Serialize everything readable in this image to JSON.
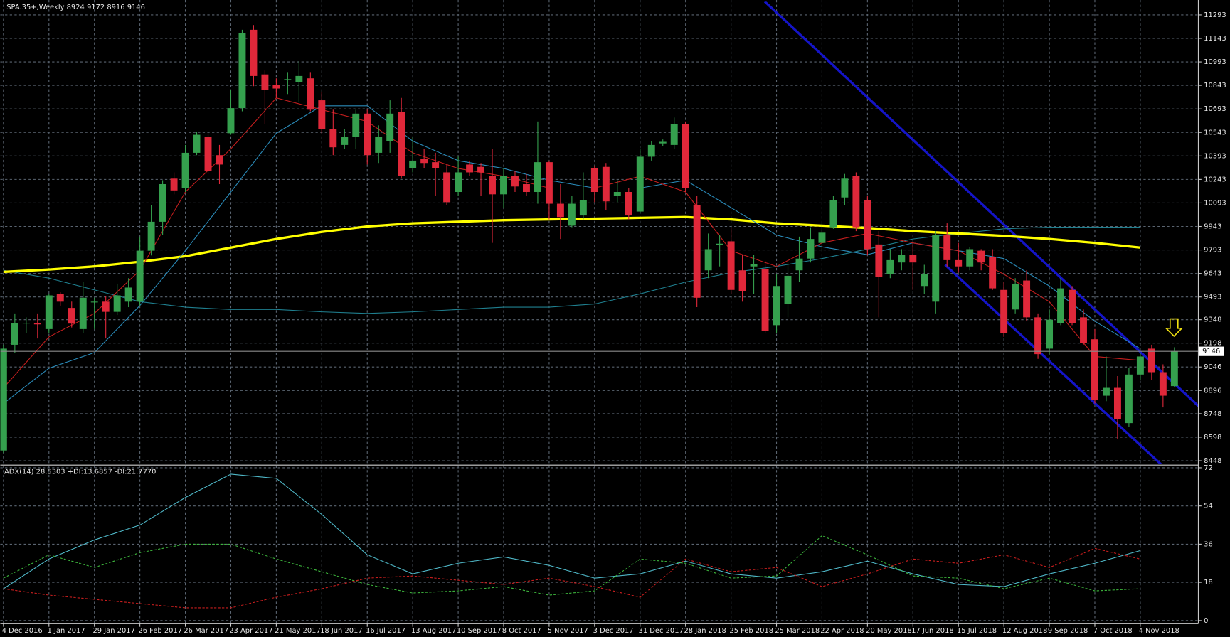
{
  "chart_data": [
    {
      "type": "candlestick",
      "title": "SPA.35+,Weekly  8924 9172 8916 9146",
      "categories": [
        "4 Dec 2016",
        null,
        null,
        null,
        "1 Jan 2017",
        null,
        null,
        null,
        "29 Jan 2017",
        null,
        null,
        null,
        "26 Feb 2017",
        null,
        null,
        null,
        "26 Mar 2017",
        null,
        null,
        null,
        "23 Apr 2017",
        null,
        null,
        null,
        "21 May 2017",
        null,
        null,
        null,
        "18 Jun 2017",
        null,
        null,
        null,
        "16 Jul 2017",
        null,
        null,
        null,
        "13 Aug 2017",
        null,
        null,
        null,
        "10 Sep 2017",
        null,
        null,
        null,
        "8 Oct 2017",
        null,
        null,
        null,
        "5 Nov 2017",
        null,
        null,
        null,
        "3 Dec 2017",
        null,
        null,
        null,
        "31 Dec 2017",
        null,
        null,
        null,
        "28 Jan 2018",
        null,
        null,
        null,
        "25 Feb 2018",
        null,
        null,
        null,
        "25 Mar 2018",
        null,
        null,
        null,
        "22 Apr 2018",
        null,
        null,
        null,
        "20 May 2018",
        null,
        null,
        null,
        "17 Jun 2018",
        null,
        null,
        null,
        "15 Jul 2018",
        null,
        null,
        null,
        "12 Aug 2018",
        null,
        null,
        null,
        "9 Sep 2018",
        null,
        null,
        null,
        "7 Oct 2018",
        null,
        null,
        null,
        "4 Nov 2018",
        null,
        null,
        null
      ],
      "open": [
        8513,
        9188,
        9323,
        9328,
        9288,
        9513,
        9423,
        9288,
        9458,
        9463,
        9398,
        9463,
        9463,
        9788,
        9973,
        10248,
        10188,
        10413,
        10513,
        10398,
        10538,
        10698,
        11198,
        10913,
        10848,
        10878,
        10863,
        10888,
        10748,
        10563,
        10463,
        10513,
        10663,
        10413,
        10488,
        10673,
        10313,
        10373,
        10353,
        10288,
        10163,
        10338,
        10323,
        10263,
        10148,
        10263,
        10213,
        10163,
        10353,
        10088,
        9948,
        10013,
        10313,
        10323,
        10138,
        10163,
        10038,
        10388,
        10473,
        10463,
        10598,
        10078,
        9663,
        9823,
        9848,
        9663,
        9688,
        9673,
        9313,
        9448,
        9663,
        9738,
        9838,
        9938,
        10128,
        10263,
        10113,
        9828,
        9638,
        9713,
        9763,
        9563,
        9463,
        9888,
        9728,
        9688,
        9788,
        9748,
        9538,
        9413,
        9598,
        9363,
        9163,
        9328,
        9538,
        9363,
        9223,
        8863,
        8913,
        8688,
        8998,
        9163,
        9013,
        8924
      ],
      "high": [
        9188,
        9388,
        9363,
        9388,
        9513,
        9523,
        9463,
        9588,
        9488,
        9498,
        9578,
        9613,
        9878,
        10078,
        10238,
        10288,
        10463,
        10548,
        10538,
        10463,
        10813,
        11198,
        11228,
        10938,
        10888,
        10928,
        10998,
        10928,
        10798,
        10688,
        10563,
        10688,
        10688,
        10588,
        10748,
        10763,
        10513,
        10438,
        10413,
        10338,
        10388,
        10363,
        10348,
        10438,
        10313,
        10298,
        10278,
        10613,
        10363,
        10213,
        10138,
        10288,
        10328,
        10348,
        10238,
        10188,
        10438,
        10488,
        10498,
        10638,
        10613,
        10138,
        9898,
        9888,
        9938,
        9763,
        9763,
        9723,
        9638,
        9713,
        9878,
        9938,
        9963,
        10138,
        10278,
        10288,
        10138,
        9913,
        9798,
        9798,
        9838,
        9698,
        9913,
        9963,
        9838,
        9813,
        9798,
        9798,
        9588,
        9613,
        9663,
        9388,
        9413,
        9613,
        9563,
        9413,
        9288,
        9113,
        8988,
        9038,
        9138,
        9188,
        9063,
        9172
      ],
      "low": [
        8498,
        9138,
        9263,
        9228,
        9263,
        9438,
        9298,
        9263,
        9288,
        9228,
        9378,
        9428,
        9438,
        9758,
        9888,
        10148,
        10163,
        10398,
        10278,
        10213,
        10528,
        10678,
        10838,
        10598,
        10763,
        10788,
        10738,
        10678,
        10538,
        10398,
        10438,
        10438,
        10338,
        10348,
        10413,
        10248,
        10288,
        10313,
        10138,
        10078,
        10138,
        10263,
        10138,
        9838,
        10063,
        10163,
        10138,
        10088,
        9988,
        9863,
        9938,
        9988,
        10098,
        10048,
        10098,
        9988,
        10028,
        10363,
        10458,
        10438,
        10163,
        9428,
        9613,
        9688,
        9513,
        9463,
        9513,
        9263,
        9263,
        9363,
        9588,
        9713,
        9788,
        9928,
        10078,
        9913,
        9763,
        9363,
        9613,
        9663,
        9538,
        9513,
        9388,
        9688,
        9648,
        9663,
        9663,
        9538,
        9238,
        9388,
        9338,
        9098,
        9128,
        9313,
        9313,
        9188,
        8813,
        8828,
        8588,
        8663,
        8963,
        8963,
        8788,
        8916
      ],
      "close": [
        9163,
        9328,
        9328,
        9318,
        9503,
        9463,
        9323,
        9488,
        9463,
        9398,
        9503,
        9553,
        9788,
        9973,
        10213,
        10173,
        10413,
        10528,
        10298,
        10338,
        10698,
        11178,
        10903,
        10813,
        10823,
        10883,
        10903,
        10688,
        10563,
        10448,
        10513,
        10663,
        10398,
        10513,
        10663,
        10263,
        10363,
        10348,
        10313,
        10098,
        10288,
        10288,
        10288,
        10148,
        10263,
        10198,
        10163,
        10353,
        10088,
        10003,
        10088,
        10113,
        10163,
        10103,
        10163,
        10013,
        10388,
        10463,
        10483,
        10598,
        10188,
        9488,
        9798,
        9833,
        9538,
        9528,
        9703,
        9278,
        9563,
        9628,
        9738,
        9863,
        9903,
        10113,
        10248,
        9938,
        9798,
        9623,
        9728,
        9763,
        9713,
        9638,
        9888,
        9728,
        9688,
        9798,
        9713,
        9548,
        9263,
        9578,
        9363,
        9128,
        9348,
        9548,
        9328,
        9198,
        8838,
        8913,
        8713,
        8998,
        9113,
        9013,
        8863,
        9146
      ],
      "up_color": "#35a04e",
      "down_color": "#e0283a",
      "last_price": 9146,
      "ylim": [
        8428,
        11378
      ],
      "yticks": [
        8448,
        8598,
        8748,
        8896,
        9046,
        9198,
        9348,
        9493,
        9643,
        9793,
        9943,
        10093,
        10243,
        10393,
        10543,
        10693,
        10843,
        10993,
        11143,
        11293
      ],
      "grid": true,
      "lines": [
        {
          "color": "#1f7f8f",
          "width": 1,
          "x": [
            "4 Dec 2016",
            "1 Jan 2017",
            "29 Jan 2017",
            "26 Feb 2017",
            "26 Mar 2017",
            "23 Apr 2017",
            "21 May 2017",
            "18 Jun 2017",
            "16 Jul 2017",
            "13 Aug 2017",
            "10 Sep 2017",
            "8 Oct 2017",
            "5 Nov 2017",
            "3 Dec 2017",
            "31 Dec 2017",
            "28 Jan 2018",
            "25 Feb 2018",
            "25 Mar 2018",
            "22 Apr 2018",
            "20 May 2018",
            "17 Jun 2018",
            "15 Jul 2018",
            "12 Aug 2018",
            "9 Sep 2018",
            "7 Oct 2018",
            "4 Nov 2018"
          ],
          "values": [
            9663,
            9613,
            9538,
            9463,
            9428,
            9413,
            9413,
            9398,
            9388,
            9398,
            9413,
            9428,
            9428,
            9448,
            9513,
            9588,
            9648,
            9688,
            9738,
            9798,
            9863,
            9898,
            9928,
            9938,
            9938,
            9938
          ]
        },
        {
          "color": "#ffff00",
          "width": 3,
          "x": [
            "4 Dec 2016",
            "1 Jan 2017",
            "29 Jan 2017",
            "26 Feb 2017",
            "26 Mar 2017",
            "23 Apr 2017",
            "21 May 2017",
            "18 Jun 2017",
            "16 Jul 2017",
            "13 Aug 2017",
            "10 Sep 2017",
            "8 Oct 2017",
            "5 Nov 2017",
            "3 Dec 2017",
            "31 Dec 2017",
            "28 Jan 2018",
            "25 Feb 2018",
            "25 Mar 2018",
            "22 Apr 2018",
            "20 May 2018",
            "17 Jun 2018",
            "15 Jul 2018",
            "12 Aug 2018",
            "9 Sep 2018",
            "7 Oct 2018",
            "4 Nov 2018"
          ],
          "values": [
            9653,
            9668,
            9688,
            9718,
            9753,
            9808,
            9863,
            9908,
            9943,
            9963,
            9973,
            9983,
            9988,
            9993,
            9998,
            10003,
            9988,
            9963,
            9948,
            9933,
            9913,
            9898,
            9883,
            9863,
            9838,
            9808
          ]
        },
        {
          "color": "#2a8ab8",
          "width": 1,
          "x": [
            "4 Dec 2016",
            "1 Jan 2017",
            "29 Jan 2017",
            "26 Feb 2017",
            "26 Mar 2017",
            "23 Apr 2017",
            "21 May 2017",
            "18 Jun 2017",
            "16 Jul 2017",
            "13 Aug 2017",
            "10 Sep 2017",
            "8 Oct 2017",
            "5 Nov 2017",
            "3 Dec 2017",
            "31 Dec 2017",
            "28 Jan 2018",
            "25 Feb 2018",
            "25 Mar 2018",
            "22 Apr 2018",
            "20 May 2018",
            "17 Jun 2018",
            "15 Jul 2018",
            "12 Aug 2018",
            "9 Sep 2018",
            "7 Oct 2018",
            "4 Nov 2018"
          ],
          "values": [
            8813,
            9038,
            9138,
            9438,
            9788,
            10163,
            10538,
            10713,
            10713,
            10488,
            10363,
            10313,
            10238,
            10188,
            10188,
            10238,
            10063,
            9888,
            9813,
            9763,
            9838,
            9788,
            9738,
            9563,
            9338,
            9163
          ]
        },
        {
          "color": "#c41e1e",
          "width": 1,
          "x": [
            "4 Dec 2016",
            "1 Jan 2017",
            "29 Jan 2017",
            "26 Feb 2017",
            "26 Mar 2017",
            "23 Apr 2017",
            "21 May 2017",
            "18 Jun 2017",
            "16 Jul 2017",
            "13 Aug 2017",
            "10 Sep 2017",
            "8 Oct 2017",
            "5 Nov 2017",
            "3 Dec 2017",
            "31 Dec 2017",
            "28 Jan 2018",
            "25 Feb 2018",
            "25 Mar 2018",
            "22 Apr 2018",
            "20 May 2018",
            "17 Jun 2018",
            "15 Jul 2018",
            "12 Aug 2018",
            "9 Sep 2018",
            "7 Oct 2018",
            "4 Nov 2018"
          ],
          "values": [
            8913,
            9238,
            9388,
            9663,
            10163,
            10438,
            10763,
            10688,
            10613,
            10413,
            10313,
            10263,
            10188,
            10188,
            10263,
            10163,
            9788,
            9688,
            9838,
            9898,
            9838,
            9788,
            9638,
            9463,
            9113,
            9088
          ]
        }
      ]
    },
    {
      "type": "line",
      "title": "ADX(14) 28.5303 +DI:13.6857 -DI:21.7770",
      "x": [
        "4 Dec 2016",
        "1 Jan 2017",
        "29 Jan 2017",
        "26 Feb 2017",
        "26 Mar 2017",
        "23 Apr 2017",
        "21 May 2017",
        "18 Jun 2017",
        "16 Jul 2017",
        "13 Aug 2017",
        "10 Sep 2017",
        "8 Oct 2017",
        "5 Nov 2017",
        "3 Dec 2017",
        "31 Dec 2017",
        "28 Jan 2018",
        "25 Feb 2018",
        "25 Mar 2018",
        "22 Apr 2018",
        "20 May 2018",
        "17 Jun 2018",
        "15 Jul 2018",
        "12 Aug 2018",
        "9 Sep 2018",
        "7 Oct 2018",
        "4 Nov 2018"
      ],
      "ylim": [
        0,
        72
      ],
      "yticks": [
        0,
        18,
        36,
        54,
        72
      ],
      "grid": true,
      "series": [
        {
          "color": "#4fb8c8",
          "dashed": false,
          "values": [
            15,
            29,
            38,
            45,
            58,
            69,
            67,
            50,
            31,
            22,
            27,
            30,
            26,
            20,
            22,
            28,
            22,
            20,
            23,
            28,
            22,
            17,
            16,
            22,
            27,
            33
          ]
        },
        {
          "color": "#3cb43c",
          "dashed": true,
          "values": [
            20,
            31,
            25,
            32,
            36,
            36,
            29,
            23,
            17,
            13,
            14,
            16,
            12,
            14,
            29,
            27,
            20,
            21,
            40,
            31,
            21,
            20,
            15,
            20,
            14,
            15
          ]
        },
        {
          "color": "#c81e1e",
          "dashed": true,
          "values": [
            15,
            12,
            10,
            8,
            6,
            6,
            11,
            15,
            20,
            21,
            19,
            17,
            20,
            16,
            11,
            29,
            23,
            25,
            16,
            22,
            29,
            27,
            31,
            25,
            34,
            29
          ]
        }
      ]
    }
  ]
}
